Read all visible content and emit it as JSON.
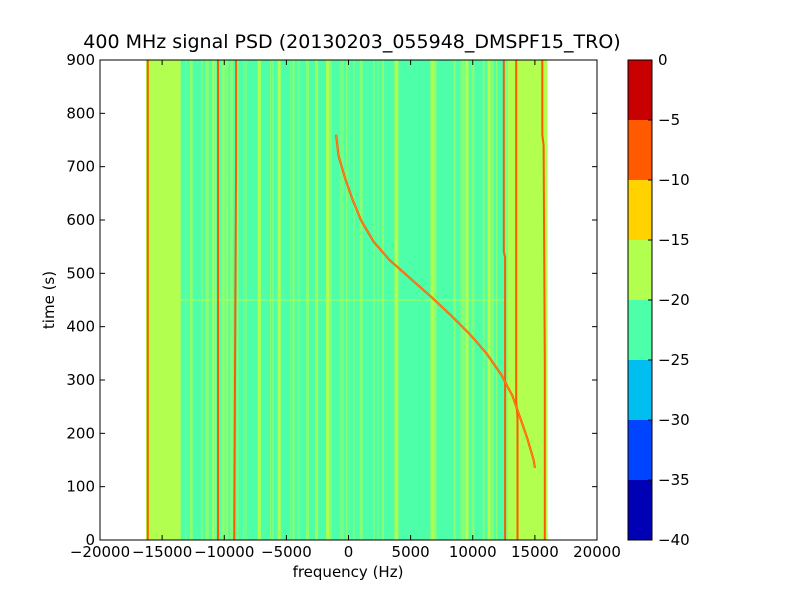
{
  "chart_data": {
    "type": "heatmap",
    "title": "400 MHz signal PSD (20130203_055948_DMSPF15_TRO)",
    "xlabel": "frequency (Hz)",
    "ylabel": "time (s)",
    "xlim": [
      -20000,
      20000
    ],
    "ylim": [
      0,
      900
    ],
    "xticks": [
      -20000,
      -15000,
      -10000,
      -5000,
      0,
      5000,
      10000,
      15000,
      20000
    ],
    "xtick_labels": [
      "−20000",
      "−15000",
      "−10000",
      "−5000",
      "0",
      "5000",
      "10000",
      "15000",
      "20000"
    ],
    "yticks": [
      0,
      100,
      200,
      300,
      400,
      500,
      600,
      700,
      800,
      900
    ],
    "ytick_labels": [
      "0",
      "100",
      "200",
      "300",
      "400",
      "500",
      "600",
      "700",
      "800",
      "900"
    ],
    "data_extent": {
      "x": [
        -16300,
        16000
      ],
      "y": [
        0,
        900
      ]
    },
    "colorbar": {
      "levels": [
        -40,
        -35,
        -30,
        -25,
        -20,
        -15,
        -10,
        -5,
        0
      ],
      "tick_labels": [
        "−40",
        "−35",
        "−30",
        "−25",
        "−20",
        "−15",
        "−10",
        "−5",
        "0"
      ],
      "colors": [
        "#0000b4",
        "#0044ff",
        "#00bff0",
        "#4dffa8",
        "#b2ff4f",
        "#ffd200",
        "#ff5a00",
        "#c80000"
      ]
    },
    "background_level_range": [
      -25,
      -20
    ],
    "features": {
      "doppler_curve": {
        "level_range": [
          -10,
          -5
        ],
        "points": [
          [
            -1000,
            760
          ],
          [
            -800,
            720
          ],
          [
            -300,
            680
          ],
          [
            300,
            640
          ],
          [
            1000,
            600
          ],
          [
            2000,
            560
          ],
          [
            3300,
            525
          ],
          [
            5000,
            490
          ],
          [
            6700,
            455
          ],
          [
            8300,
            420
          ],
          [
            9800,
            385
          ],
          [
            11100,
            350
          ],
          [
            12300,
            310
          ],
          [
            13200,
            270
          ],
          [
            13800,
            230
          ],
          [
            14400,
            190
          ],
          [
            14900,
            150
          ],
          [
            15000,
            135
          ]
        ]
      },
      "vertical_lines": [
        {
          "x": [
            [
              -16150,
              0
            ],
            [
              -16150,
              900
            ]
          ]
        },
        {
          "x": [
            [
              -10500,
              0
            ],
            [
              -10500,
              900
            ]
          ]
        },
        {
          "x": [
            [
              -9200,
              0
            ],
            [
              -9050,
              720
            ],
            [
              -9050,
              900
            ]
          ]
        },
        {
          "x": [
            [
              12600,
              0
            ],
            [
              12600,
              530
            ],
            [
              12500,
              540
            ],
            [
              12500,
              900
            ]
          ]
        },
        {
          "x": [
            [
              13600,
              0
            ],
            [
              13600,
              230
            ],
            [
              13500,
              260
            ],
            [
              13500,
              900
            ]
          ]
        },
        {
          "x": [
            [
              15800,
              0
            ],
            [
              15800,
              330
            ],
            [
              15700,
              740
            ],
            [
              15600,
              760
            ],
            [
              15600,
              900
            ]
          ]
        }
      ]
    }
  }
}
